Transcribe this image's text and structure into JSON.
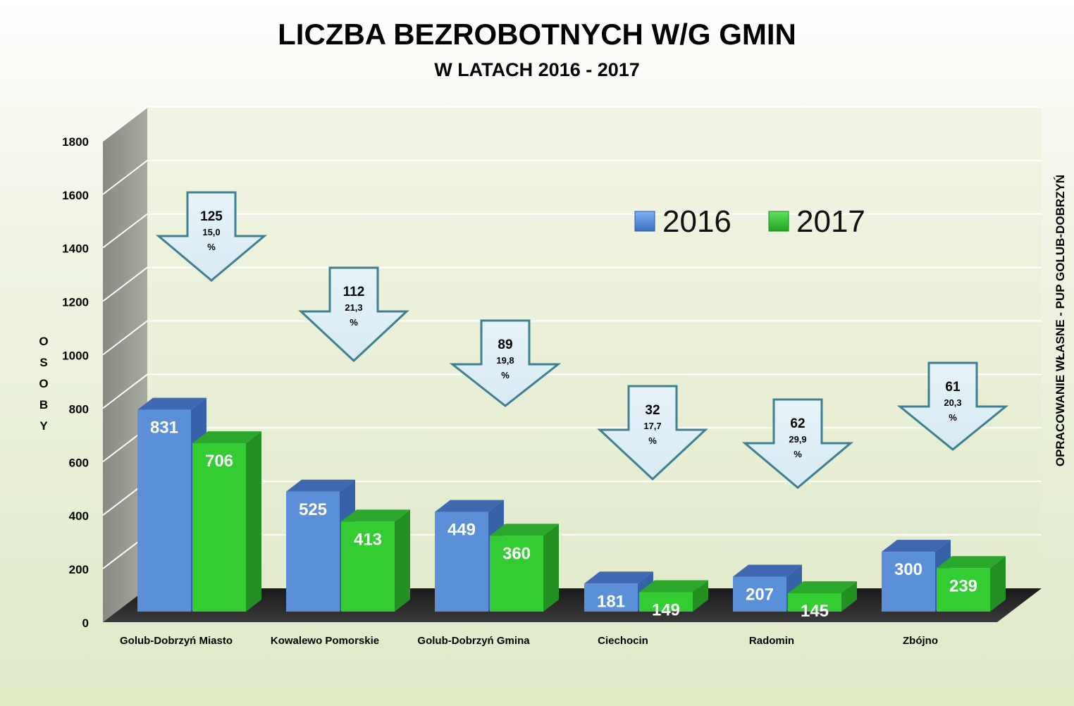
{
  "chart_data": {
    "type": "bar",
    "title": "LICZBA BEZROBOTNYCH W/G GMIN",
    "subtitle": "W LATACH 2016 - 2017",
    "ylabel": "OSOBY",
    "ylim": [
      0,
      1800
    ],
    "yticks": [
      "0",
      "200",
      "400",
      "600",
      "800",
      "1000",
      "1200",
      "1400",
      "1600",
      "1800"
    ],
    "grid": true,
    "legend_position": "top-right",
    "side_note": "OPRACOWANIE WŁASNE - PUP GOLUB-DOBRZYŃ",
    "categories": [
      "Golub-Dobrzyń Miasto",
      "Kowalewo Pomorskie",
      "Golub-Dobrzyń Gmina",
      "Ciechocin",
      "Radomin",
      "Zbójno"
    ],
    "series": [
      {
        "name": "2016",
        "color": "#5b8fd8",
        "values": [
          831,
          525,
          449,
          181,
          207,
          300
        ]
      },
      {
        "name": "2017",
        "color": "#33cc33",
        "values": [
          706,
          413,
          360,
          149,
          145,
          239
        ]
      }
    ],
    "annotations": [
      {
        "category": "Golub-Dobrzyń Miasto",
        "change": "125",
        "percent": "15,0",
        "unit": "%"
      },
      {
        "category": "Kowalewo Pomorskie",
        "change": "112",
        "percent": "21,3",
        "unit": "%"
      },
      {
        "category": "Golub-Dobrzyń Gmina",
        "change": "89",
        "percent": "19,8",
        "unit": "%"
      },
      {
        "category": "Ciechocin",
        "change": "32",
        "percent": "17,7",
        "unit": "%"
      },
      {
        "category": "Radomin",
        "change": "62",
        "percent": "29,9",
        "unit": "%"
      },
      {
        "category": "Zbójno",
        "change": "61",
        "percent": "20,3",
        "unit": "%"
      }
    ]
  }
}
